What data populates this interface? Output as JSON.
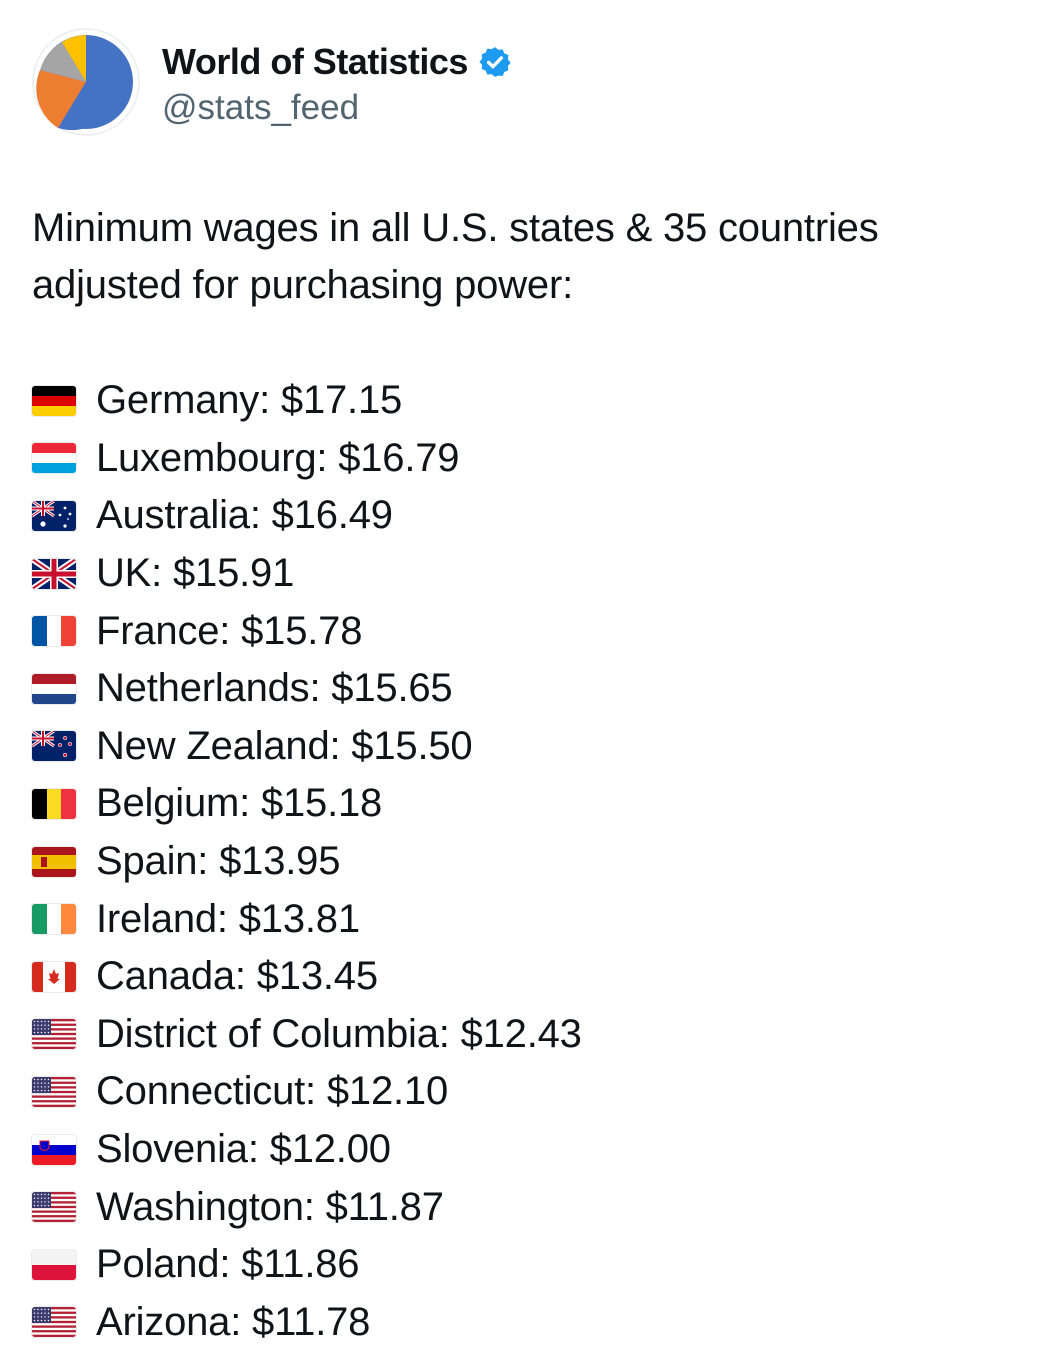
{
  "author": {
    "display_name": "World of Statistics",
    "handle": "@stats_feed",
    "verified_color": "#1d9bf0",
    "avatar_icon": "pie-chart-icon",
    "avatar_colors": [
      "#4472c4",
      "#ed7d31",
      "#a5a5a5",
      "#ffc000"
    ]
  },
  "tweet": {
    "intro": "Minimum wages in all U.S. states & 35 countries adjusted for purchasing power:",
    "entries": [
      {
        "flag": "germany-flag-icon",
        "text": "Germany: $17.15"
      },
      {
        "flag": "luxembourg-flag-icon",
        "text": "Luxembourg: $16.79"
      },
      {
        "flag": "australia-flag-icon",
        "text": "Australia: $16.49"
      },
      {
        "flag": "uk-flag-icon",
        "text": "UK: $15.91"
      },
      {
        "flag": "france-flag-icon",
        "text": "France: $15.78"
      },
      {
        "flag": "netherlands-flag-icon",
        "text": "Netherlands: $15.65"
      },
      {
        "flag": "new-zealand-flag-icon",
        "text": "New Zealand: $15.50"
      },
      {
        "flag": "belgium-flag-icon",
        "text": "Belgium: $15.18"
      },
      {
        "flag": "spain-flag-icon",
        "text": "Spain: $13.95"
      },
      {
        "flag": "ireland-flag-icon",
        "text": "Ireland: $13.81"
      },
      {
        "flag": "canada-flag-icon",
        "text": "Canada: $13.45"
      },
      {
        "flag": "us-flag-icon",
        "text": "District of Columbia: $12.43"
      },
      {
        "flag": "us-flag-icon",
        "text": "Connecticut: $12.10"
      },
      {
        "flag": "slovenia-flag-icon",
        "text": "Slovenia: $12.00"
      },
      {
        "flag": "us-flag-icon",
        "text": "Washington: $11.87"
      },
      {
        "flag": "poland-flag-icon",
        "text": "Poland: $11.86"
      },
      {
        "flag": "us-flag-icon",
        "text": "Arizona: $11.78"
      }
    ]
  }
}
